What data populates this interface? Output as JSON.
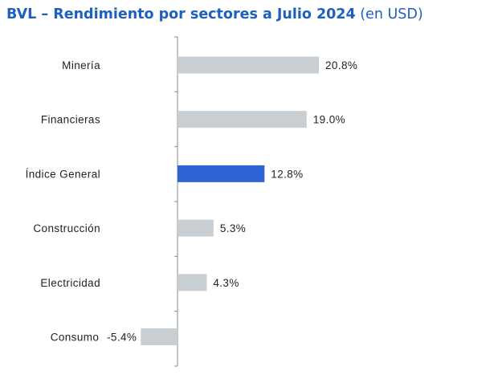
{
  "header": {
    "title_main": "BVL – Rendimiento por sectores a Julio 2024",
    "title_sub": "(en USD)"
  },
  "colors": {
    "title": "#1f5fbf",
    "bar_default": "#c9ced3",
    "bar_highlight": "#2e64d6",
    "axis": "#8a8a8a",
    "text": "#222222"
  },
  "chart_data": {
    "type": "bar",
    "orientation": "horizontal",
    "title": "BVL – Rendimiento por sectores a Julio 2024 (en USD)",
    "xlabel": "",
    "ylabel": "",
    "unit": "%",
    "grid": false,
    "legend": "none",
    "xlim": [
      -5.4,
      20.8
    ],
    "categories": [
      "Minería",
      "Financieras",
      "Índice General",
      "Construcción",
      "Electricidad",
      "Consumo"
    ],
    "values": [
      20.8,
      19.0,
      12.8,
      5.3,
      4.3,
      -5.4
    ],
    "value_labels": [
      "20.8%",
      "19.0%",
      "12.8%",
      "5.3%",
      "4.3%",
      "-5.4%"
    ],
    "highlight": [
      "Índice General"
    ]
  }
}
